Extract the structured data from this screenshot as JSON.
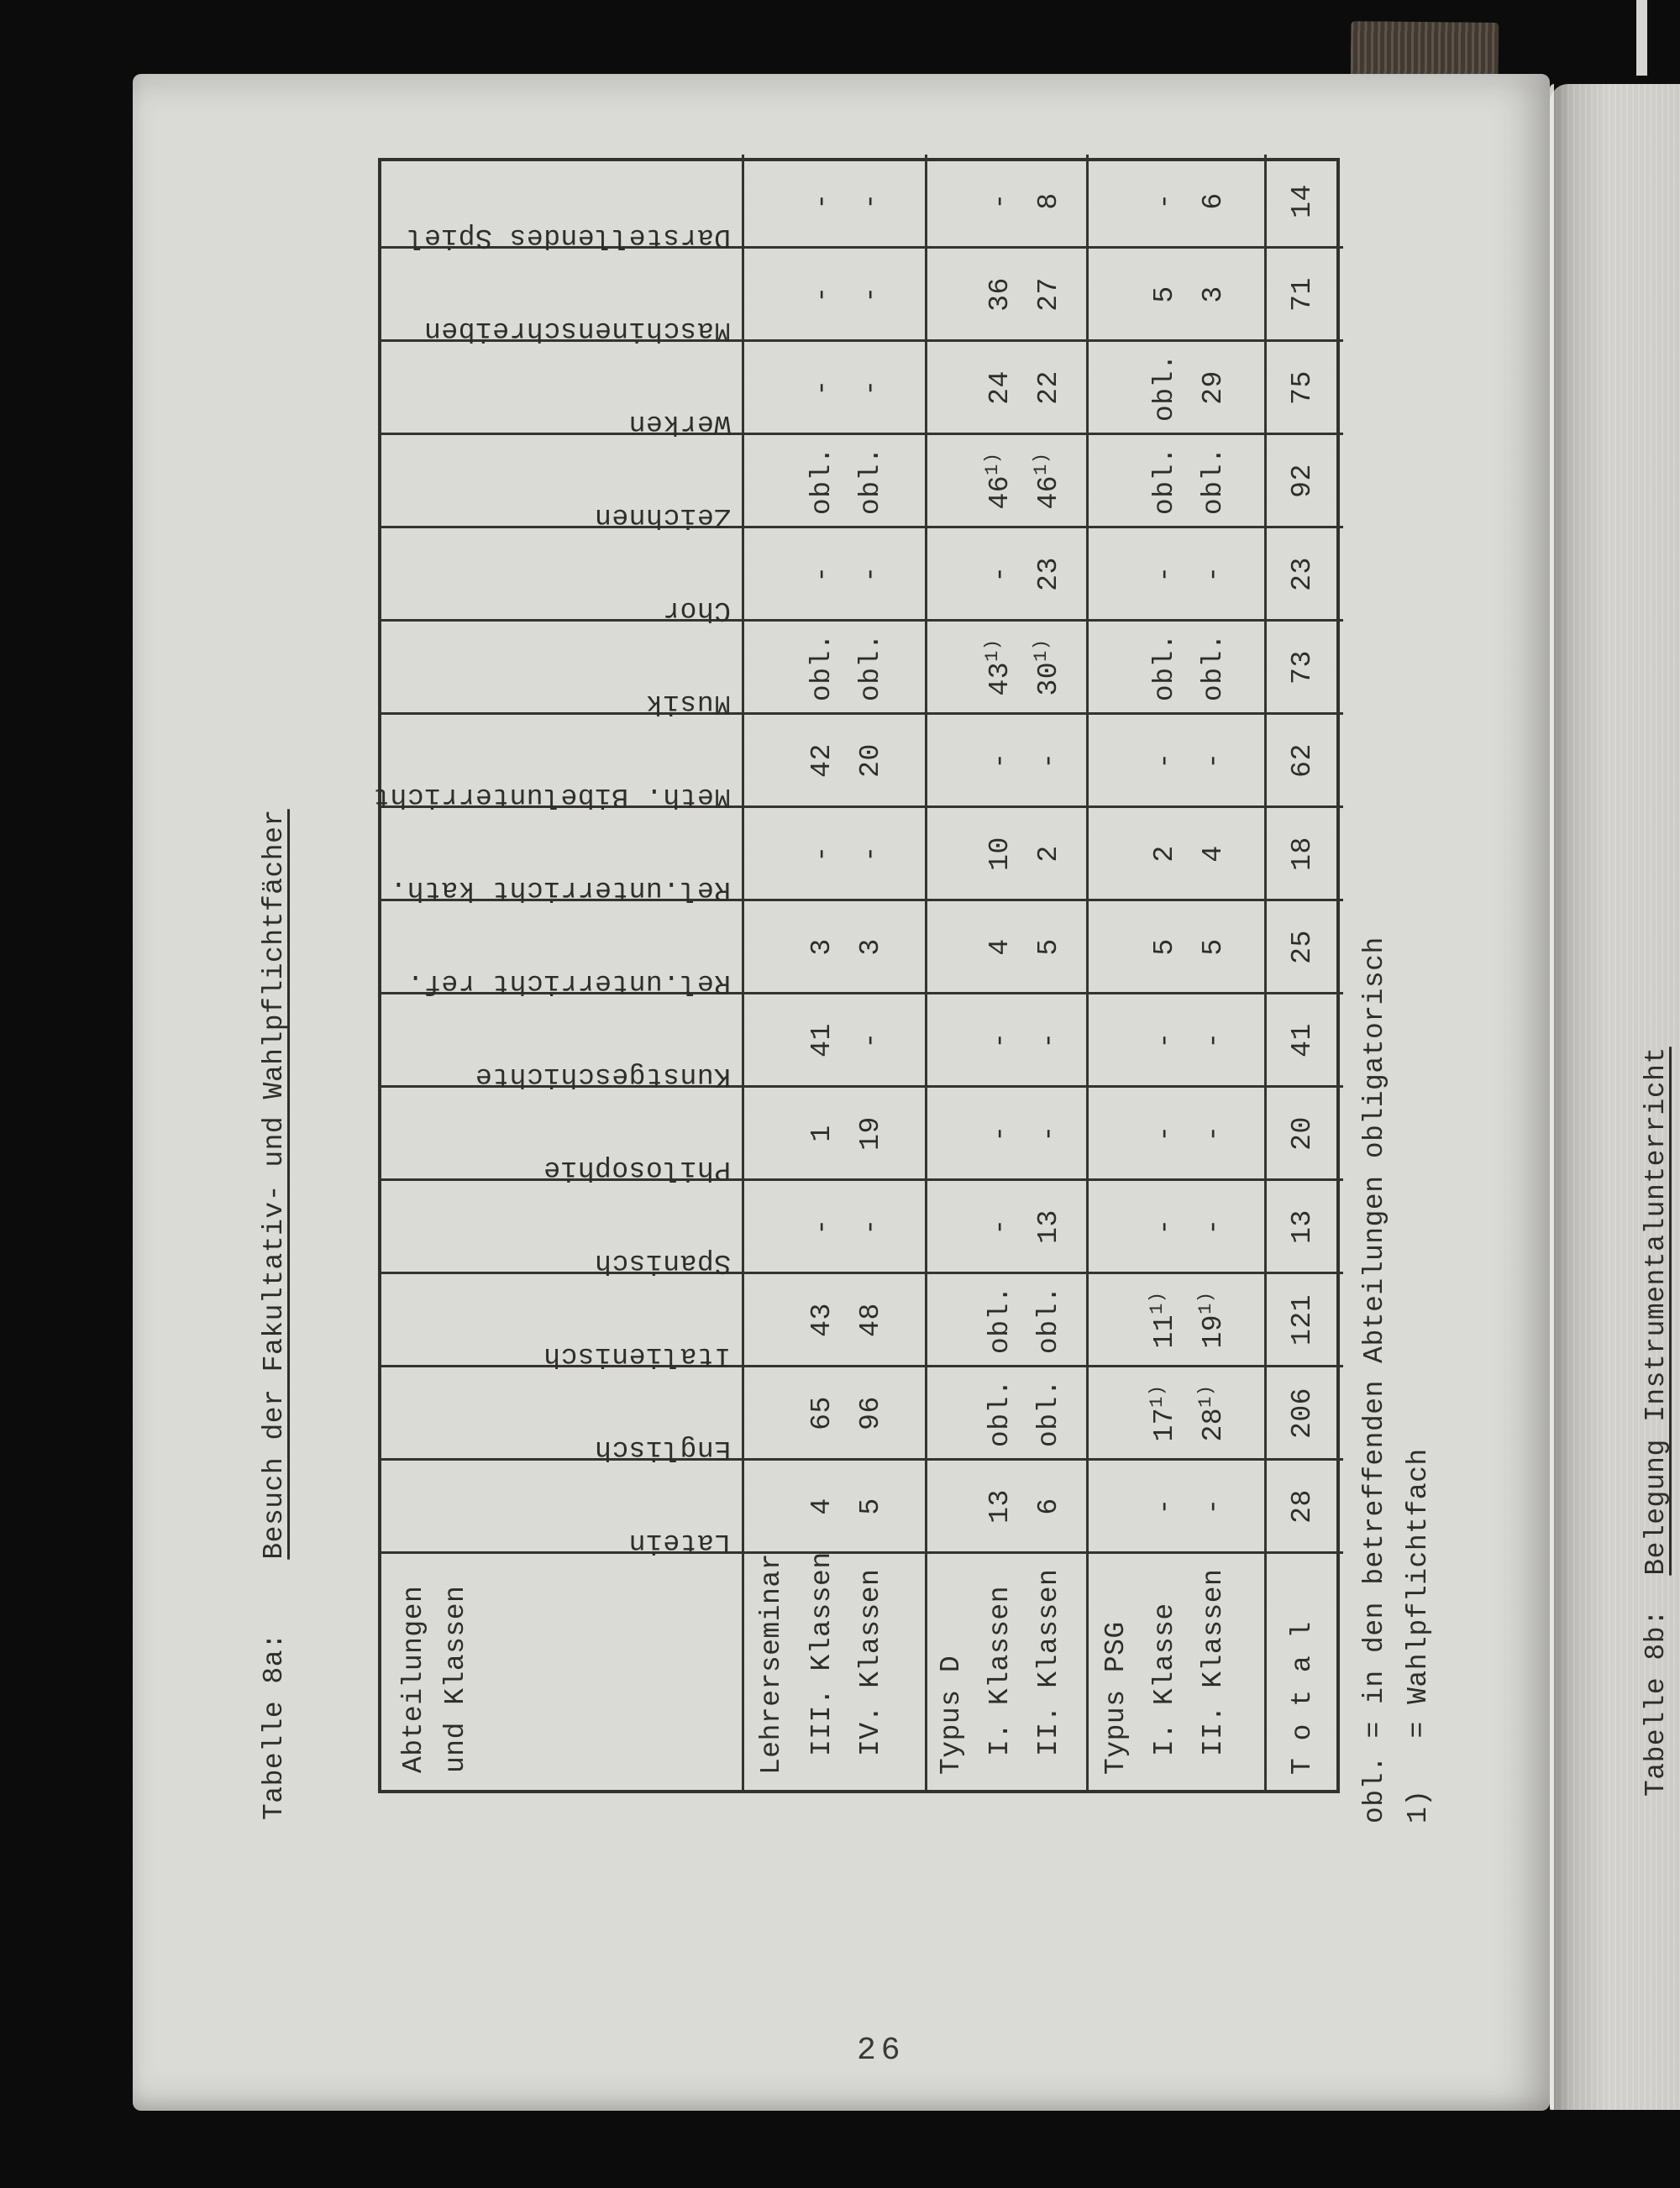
{
  "page": {
    "number": "26",
    "title": {
      "prefix": "Tabelle 8a:",
      "text": "Besuch der Fakultativ- und Wahlpflichtfächer"
    },
    "next_page_title": {
      "prefix": "Tabelle 8b:",
      "text": "Belegung Instrumentalunterricht"
    }
  },
  "table": {
    "corner_header": [
      "Abteilungen",
      "und Klassen"
    ],
    "subjects": [
      "Latein",
      "Englisch",
      "Italienisch",
      "Spanisch",
      "Philosophie",
      "Kunstgeschichte",
      "Rel.unterricht ref.",
      "Rel.unterricht kath.",
      "Meth. Bibelunterricht",
      "Musik",
      "Chor",
      "Zeichnen",
      "Werken",
      "Maschinenschreiben",
      "Darstellendes Spiel"
    ],
    "groups": [
      {
        "label": "Lehrerseminar",
        "rows": [
          {
            "label": "III. Klassen",
            "values": [
              "4",
              "65",
              "43",
              "-",
              "1",
              "41",
              "3",
              "-",
              "42",
              "obl.",
              "-",
              "obl.",
              "-",
              "-",
              "-"
            ]
          },
          {
            "label": "IV. Klassen",
            "values": [
              "5",
              "96",
              "48",
              "-",
              "19",
              "-",
              "3",
              "-",
              "20",
              "obl.",
              "-",
              "obl.",
              "-",
              "-",
              "-"
            ]
          }
        ]
      },
      {
        "label": "Typus D",
        "rows": [
          {
            "label": "I. Klassen",
            "values": [
              "13",
              "obl.",
              "obl.",
              "-",
              "-",
              "-",
              "4",
              "10",
              "-",
              "43^1)",
              "-",
              "46^1)",
              "24",
              "36",
              "-"
            ]
          },
          {
            "label": "II. Klassen",
            "values": [
              "6",
              "obl.",
              "obl.",
              "13",
              "-",
              "-",
              "5",
              "2",
              "-",
              "30^1)",
              "23",
              "46^1)",
              "22",
              "27",
              "8"
            ]
          }
        ]
      },
      {
        "label": "Typus PSG",
        "rows": [
          {
            "label": "I. Klasse",
            "values": [
              "-",
              "17^1)",
              "11^1)",
              "-",
              "-",
              "-",
              "5",
              "2",
              "-",
              "obl.",
              "-",
              "obl.",
              "obl.",
              "5",
              "-"
            ]
          },
          {
            "label": "II. Klassen",
            "values": [
              "-",
              "28^1)",
              "19^1)",
              "-",
              "-",
              "-",
              "5",
              "4",
              "-",
              "obl.",
              "-",
              "obl.",
              "29",
              "3",
              "6"
            ]
          }
        ]
      }
    ],
    "total": {
      "label": "T o t a l",
      "values": [
        "28",
        "206",
        "121",
        "13",
        "20",
        "41",
        "25",
        "18",
        "62",
        "73",
        "23",
        "92",
        "75",
        "71",
        "14"
      ]
    }
  },
  "footnotes": [
    "obl. = in den betreffenden Abteilungen obligatorisch",
    "1)   = Wahlpflichtfach"
  ]
}
